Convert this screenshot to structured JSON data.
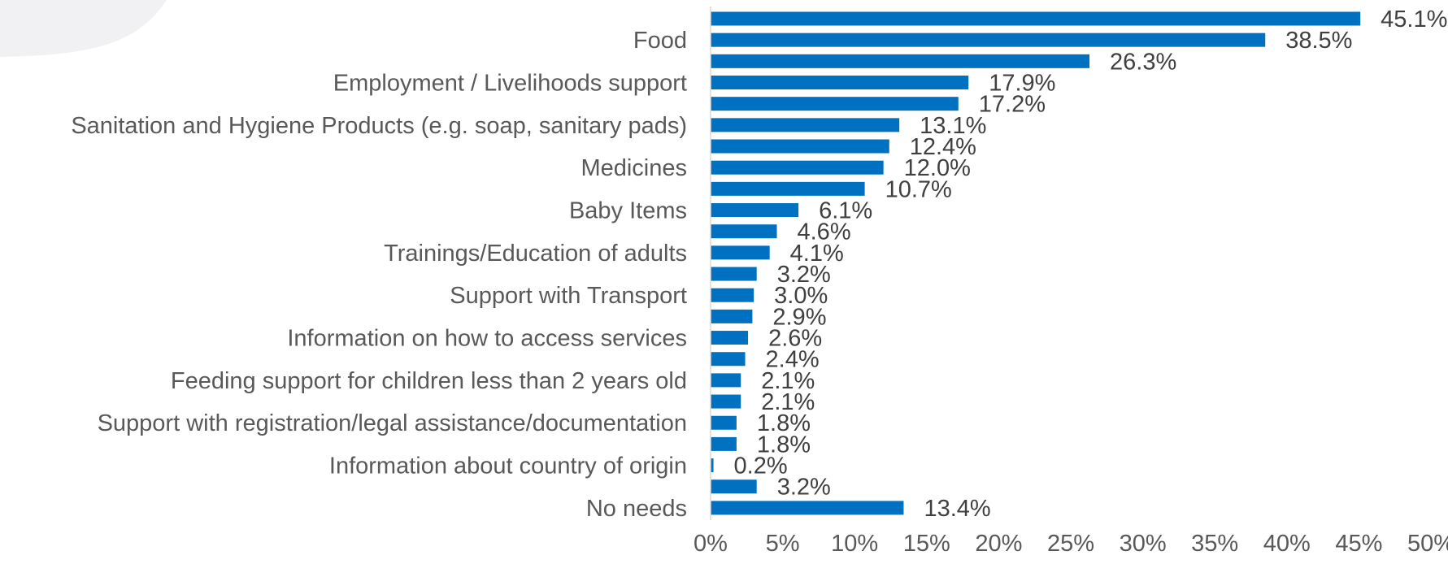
{
  "chart_data": {
    "type": "bar",
    "orientation": "horizontal",
    "title": "",
    "xlabel": "",
    "ylabel": "",
    "xlim": [
      0,
      50
    ],
    "x_ticks": [
      "0%",
      "5%",
      "10%",
      "15%",
      "20%",
      "25%",
      "30%",
      "35%",
      "40%",
      "45%",
      "50%"
    ],
    "grid": false,
    "bar_color": "#0070C0",
    "axis_line_color": "#D9D9D9",
    "label_color": "#595959",
    "value_label_color": "#404040",
    "values": [
      45.1,
      38.5,
      26.3,
      17.9,
      17.2,
      13.1,
      12.4,
      12.0,
      10.7,
      6.1,
      4.6,
      4.1,
      3.2,
      3.0,
      2.9,
      2.6,
      2.4,
      2.1,
      2.1,
      1.8,
      1.8,
      0.2,
      3.2,
      13.4
    ],
    "value_labels": [
      "45.1%",
      "38.5%",
      "26.3%",
      "17.9%",
      "17.2%",
      "13.1%",
      "12.4%",
      "12.0%",
      "10.7%",
      "6.1%",
      "4.6%",
      "4.1%",
      "3.2%",
      "3.0%",
      "2.9%",
      "2.6%",
      "2.4%",
      "2.1%",
      "2.1%",
      "1.8%",
      "1.8%",
      "0.2%",
      "3.2%",
      "13.4%"
    ],
    "categories": [
      "",
      "Food",
      "",
      "Employment / Livelihoods support",
      "",
      "Sanitation and Hygiene Products (e.g. soap, sanitary pads)",
      "",
      "Medicines",
      "",
      "Baby Items",
      "",
      "Trainings/Education of adults",
      "",
      "Support with Transport",
      "",
      "Information on how to access services",
      "",
      "Feeding support for children less than 2 years old",
      "",
      "Support with registration/legal assistance/documentation",
      "",
      "Information about country of origin",
      "",
      "No needs"
    ]
  }
}
